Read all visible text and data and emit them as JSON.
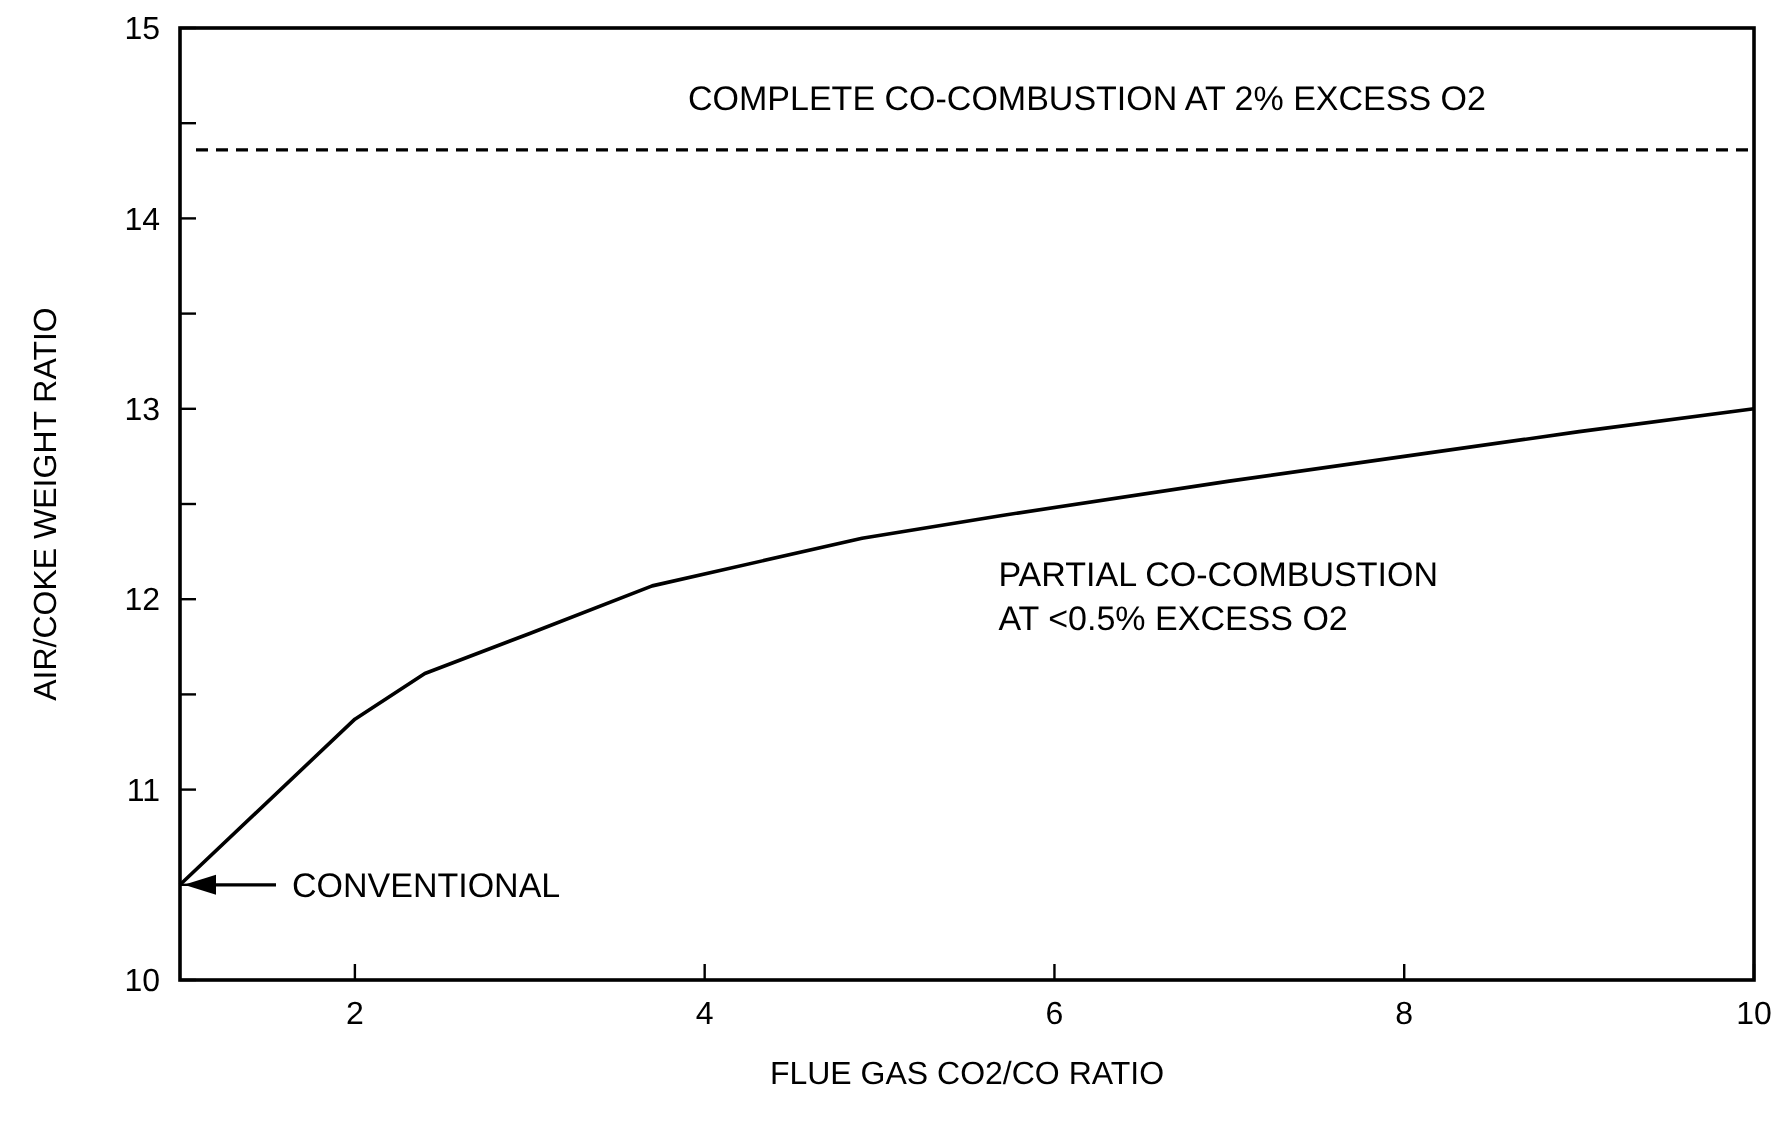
{
  "chart_data": {
    "type": "line",
    "xlabel": "FLUE GAS CO2/CO RATIO",
    "ylabel": "AIR/COKE WEIGHT RATIO",
    "x": [
      1,
      2,
      2.4,
      3,
      3.7,
      4.9,
      5.7,
      7,
      8,
      9,
      10
    ],
    "series": [
      {
        "color": "#000000",
        "values": [
          10.5,
          11.37,
          11.61,
          11.82,
          12.07,
          12.32,
          12.44,
          12.62,
          12.75,
          12.88,
          13.0
        ]
      }
    ],
    "xlim": [
      1,
      10
    ],
    "xticks": [
      2,
      4,
      6,
      8,
      10
    ],
    "ylim": [
      10,
      15
    ],
    "yticks": [
      10,
      {
        "value": 10.5,
        "label": null
      },
      11,
      {
        "value": 11.5,
        "label": null
      },
      12,
      {
        "value": 12.5,
        "label": null
      },
      13,
      {
        "value": 13.5,
        "label": null
      },
      14,
      {
        "value": 14.5,
        "label": null
      },
      15
    ],
    "ref_lines": [
      {
        "axis": "y",
        "value": 14.36,
        "label": "COMPLETE CO-COMBUSTION AT 2% EXCESS O2",
        "line_style": "dashed",
        "color": "#000000"
      }
    ],
    "annotations": [
      "PARTIAL CO-COMBUSTION\nAT <0.5% EXCESS O2",
      "CONVENTIONAL"
    ],
    "grid": false,
    "marker": "none",
    "line_style": "solid"
  }
}
